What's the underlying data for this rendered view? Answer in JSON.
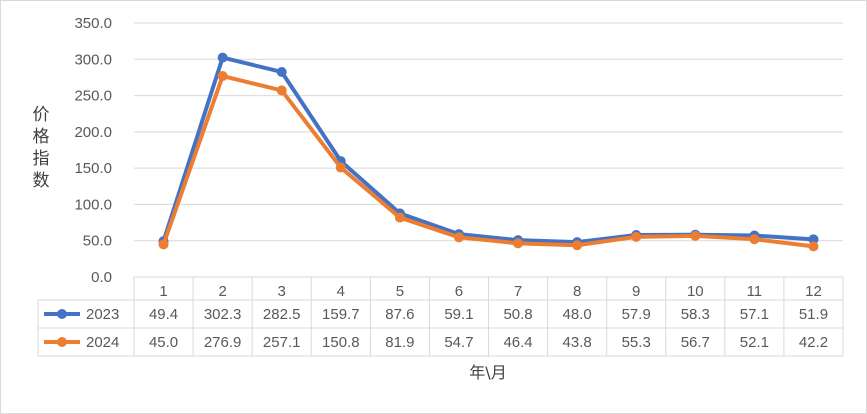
{
  "chart_data": {
    "type": "line",
    "categories": [
      "1",
      "2",
      "3",
      "4",
      "5",
      "6",
      "7",
      "8",
      "9",
      "10",
      "11",
      "12"
    ],
    "series": [
      {
        "name": "2023",
        "color": "#4472c4",
        "values": [
          49.4,
          302.3,
          282.5,
          159.7,
          87.6,
          59.1,
          50.8,
          48.0,
          57.9,
          58.3,
          57.1,
          51.9
        ],
        "labels": [
          "49.4",
          "302.3",
          "282.5",
          "159.7",
          "87.6",
          "59.1",
          "50.8",
          "48.0",
          "57.9",
          "58.3",
          "57.1",
          "51.9"
        ]
      },
      {
        "name": "2024",
        "color": "#ed7d31",
        "values": [
          45.0,
          276.9,
          257.1,
          150.8,
          81.9,
          54.7,
          46.4,
          43.8,
          55.3,
          56.7,
          52.1,
          42.2
        ],
        "labels": [
          "45.0",
          "276.9",
          "257.1",
          "150.8",
          "81.9",
          "54.7",
          "46.4",
          "43.8",
          "55.3",
          "56.7",
          "52.1",
          "42.2"
        ]
      }
    ],
    "ylabel": "价格指数",
    "xlabel": "年\\月",
    "ylim": [
      0,
      350
    ],
    "yticks": [
      "0.0",
      "50.0",
      "100.0",
      "150.0",
      "200.0",
      "250.0",
      "300.0",
      "350.0"
    ],
    "grid": true,
    "legend": "data-table"
  }
}
